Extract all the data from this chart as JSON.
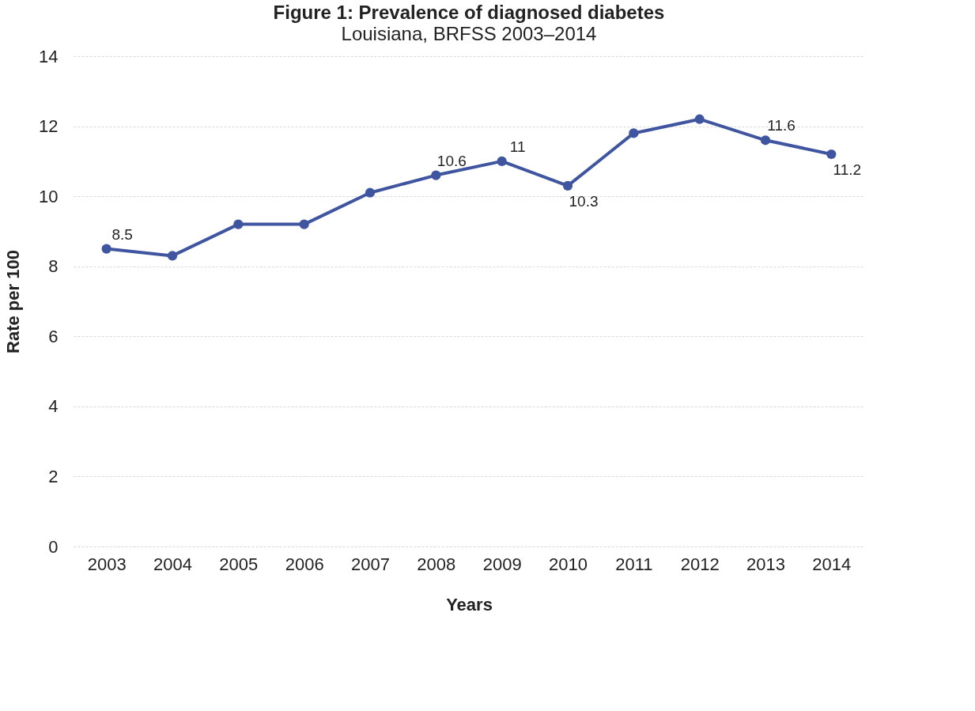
{
  "chart_data": {
    "type": "line",
    "title": "Figure 1: Prevalence of diagnosed diabetes",
    "subtitle": "Louisiana, BRFSS 2003–2014",
    "xlabel": "Years",
    "ylabel": "Rate per 100",
    "categories": [
      "2003",
      "2004",
      "2005",
      "2006",
      "2007",
      "2008",
      "2009",
      "2010",
      "2011",
      "2012",
      "2013",
      "2014"
    ],
    "series": [
      {
        "color": "#3f55a0",
        "values": [
          8.5,
          8.3,
          9.2,
          9.2,
          10.1,
          10.6,
          11,
          10.3,
          11.8,
          12.2,
          11.6,
          11.2
        ],
        "value_labels": [
          "8.5",
          null,
          null,
          null,
          null,
          "10.6",
          "11",
          "10.3",
          null,
          null,
          "11.6",
          "11.2"
        ]
      }
    ],
    "ylim": [
      0,
      14
    ],
    "yticks": [
      0,
      2,
      4,
      6,
      8,
      10,
      12,
      14
    ],
    "grid": "y",
    "marker": "circle",
    "line_style": "solid"
  }
}
